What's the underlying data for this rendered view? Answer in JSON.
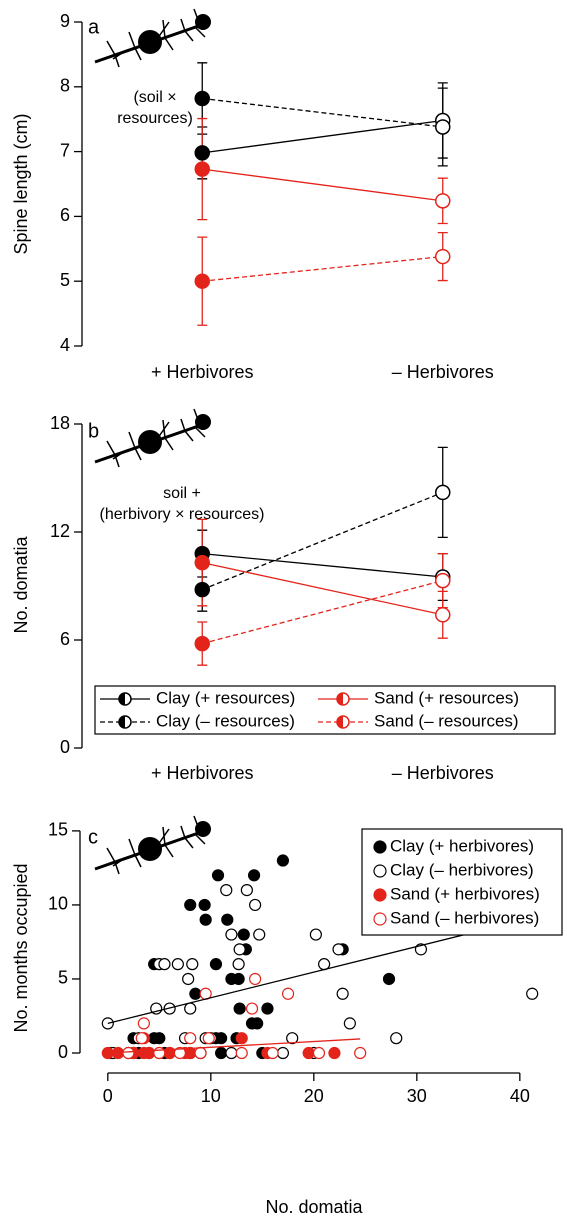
{
  "chart_data": [
    {
      "type": "line",
      "panel_label": "a",
      "ylabel": "Spine length (cm)",
      "annotation": [
        "(soil ×",
        "resources)"
      ],
      "categories": [
        "+ Herbivores",
        "– Herbivores"
      ],
      "open_markers": [
        false,
        true
      ],
      "ylim": [
        4,
        9
      ],
      "yticks": [
        4,
        5,
        6,
        7,
        8,
        9
      ],
      "series": [
        {
          "color": "#000000",
          "linestyle": "solid",
          "values": [
            6.98,
            7.48
          ],
          "errors": [
            0.4,
            0.58
          ]
        },
        {
          "color": "#000000",
          "linestyle": "dashed",
          "values": [
            7.82,
            7.38
          ],
          "errors": [
            0.55,
            0.6
          ]
        },
        {
          "color": "#e3241b",
          "linestyle": "solid",
          "values": [
            6.73,
            6.24
          ],
          "errors": [
            0.78,
            0.35
          ]
        },
        {
          "color": "#e3241b",
          "linestyle": "dashed",
          "values": [
            5.0,
            5.38
          ],
          "errors": [
            0.68,
            0.37
          ]
        }
      ]
    },
    {
      "type": "line",
      "panel_label": "b",
      "ylabel": "No. domatia",
      "annotation": [
        "soil +",
        "(herbivory × resources)"
      ],
      "categories": [
        "+ Herbivores",
        "– Herbivores"
      ],
      "open_markers": [
        false,
        true
      ],
      "ylim": [
        0,
        18
      ],
      "yticks": [
        0,
        6,
        12,
        18
      ],
      "series": [
        {
          "name": "Clay (+ resources)",
          "color": "#000000",
          "linestyle": "solid",
          "values": [
            10.8,
            9.5
          ],
          "errors": [
            1.3,
            1.3
          ]
        },
        {
          "name": "Clay (– resources)",
          "color": "#000000",
          "linestyle": "dashed",
          "values": [
            8.8,
            14.2
          ],
          "errors": [
            1.2,
            2.5
          ]
        },
        {
          "name": "Sand (+ resources)",
          "color": "#e3241b",
          "linestyle": "solid",
          "values": [
            10.3,
            7.4
          ],
          "errors": [
            2.4,
            1.3
          ]
        },
        {
          "name": "Sand (– resources)",
          "color": "#e3241b",
          "linestyle": "dashed",
          "values": [
            5.8,
            9.3
          ],
          "errors": [
            1.2,
            1.5
          ]
        }
      ]
    },
    {
      "type": "scatter",
      "panel_label": "c",
      "xlabel": "No. domatia",
      "ylabel": "No. months occupied",
      "xlim": [
        -2.7,
        43.9
      ],
      "xticks": [
        0,
        10,
        20,
        30,
        40
      ],
      "ylim": [
        -1.35,
        15.6
      ],
      "yticks": [
        0,
        5,
        10,
        15
      ],
      "series": [
        {
          "name": "Clay (+ herbivores)",
          "color": "#000000",
          "marker": "filled",
          "x": [
            17,
            10.7,
            14.2,
            8,
            9.4,
            9.5,
            11.6,
            13.2,
            13.4,
            22.8,
            4.5,
            10.5,
            12,
            12.7,
            27.3,
            8.5,
            12.8,
            15.5,
            14,
            14.5,
            2.5,
            4.5,
            5,
            10.5,
            11,
            12.5,
            0.3,
            2.5,
            3,
            4,
            5.5,
            8,
            11,
            15
          ],
          "values": [
            13,
            12,
            12,
            10,
            10,
            9,
            9,
            8,
            7,
            7,
            6,
            6,
            5,
            5,
            5,
            4,
            3,
            3,
            2,
            2,
            1,
            1,
            1,
            1,
            1,
            1,
            0,
            0,
            0,
            0,
            0,
            0,
            0,
            0
          ]
        },
        {
          "name": "Clay (– herbivores)",
          "color": "#000000",
          "marker": "open",
          "x": [
            11.5,
            13.5,
            14.3,
            12,
            14.7,
            20.2,
            12.8,
            22.4,
            30.4,
            5,
            5.5,
            6.8,
            8.2,
            12.7,
            21,
            7.8,
            41.2,
            22.8,
            4.7,
            6,
            8,
            0,
            23.5,
            17.9,
            28,
            7.5,
            9.5,
            10,
            3,
            0.5,
            2,
            6,
            9,
            12,
            17,
            20
          ],
          "values": [
            11,
            11,
            10,
            8,
            8,
            8,
            7,
            7,
            7,
            6,
            6,
            6,
            6,
            6,
            6,
            5,
            4,
            4,
            3,
            3,
            3,
            2,
            2,
            1,
            1,
            1,
            1,
            1,
            1,
            0,
            0,
            0,
            0,
            0,
            0,
            0
          ]
        },
        {
          "name": "Sand (+ herbivores)",
          "color": "#e3241b",
          "marker": "filled",
          "x": [
            0,
            1,
            2.5,
            3.5,
            4,
            5,
            6,
            7.5,
            8,
            15.5,
            19.5,
            22,
            3.5,
            13
          ],
          "values": [
            0,
            0,
            0,
            0,
            0,
            0,
            0,
            0,
            0,
            0,
            0,
            0,
            1,
            1
          ]
        },
        {
          "name": "Sand (– herbivores)",
          "color": "#e3241b",
          "marker": "open",
          "x": [
            14.3,
            9.5,
            17.5,
            14,
            3.5,
            3.3,
            8,
            9.8,
            2,
            5,
            7,
            9,
            13,
            16,
            20.5,
            24.5
          ],
          "values": [
            5,
            4,
            4,
            3,
            2,
            1,
            1,
            1,
            0,
            0,
            0,
            0,
            0,
            0,
            0,
            0
          ]
        }
      ],
      "fits": [
        {
          "color": "#000000",
          "x": [
            0,
            41.3
          ],
          "values": [
            2,
            9.15
          ]
        },
        {
          "color": "#e3241b",
          "x": [
            0,
            24.5
          ],
          "values": [
            0,
            0.95
          ]
        }
      ]
    }
  ]
}
